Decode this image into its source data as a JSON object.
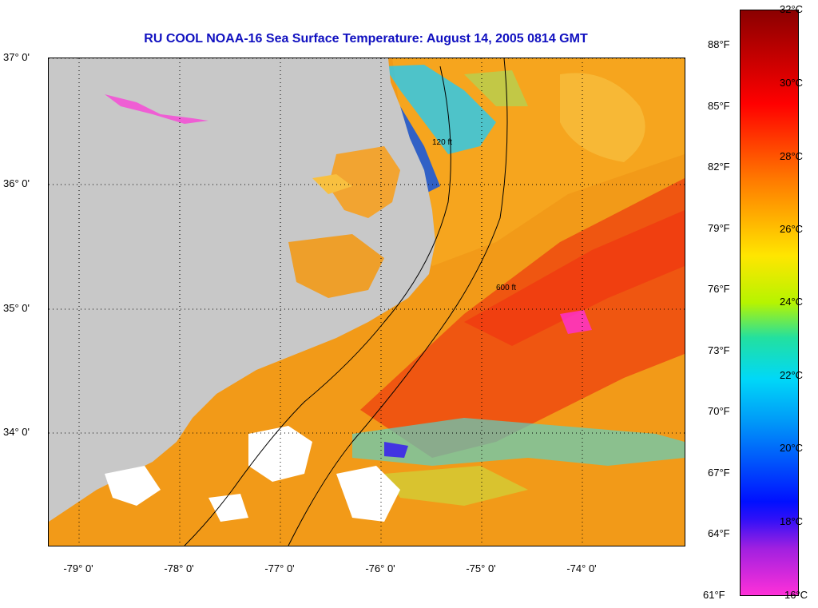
{
  "title": "RU COOL  NOAA-16  Sea Surface Temperature:  August 14, 2005 0814 GMT",
  "lat_labels": [
    "37° 0'",
    "36° 0'",
    "35° 0'",
    "34° 0'"
  ],
  "lon_labels": [
    "-79° 0'",
    "-78° 0'",
    "-77° 0'",
    "-76° 0'",
    "-75° 0'",
    "-74° 0'"
  ],
  "isobath_labels": [
    "120 ft",
    "600 ft"
  ],
  "colorbar": {
    "fahrenheit": [
      "88°F",
      "85°F",
      "82°F",
      "79°F",
      "76°F",
      "73°F",
      "70°F",
      "67°F",
      "64°F",
      "61°F"
    ],
    "celsius": [
      "32°C",
      "30°C",
      "28°C",
      "26°C",
      "24°C",
      "22°C",
      "20°C",
      "18°C",
      "16°C"
    ]
  },
  "colors": {
    "title": "#1010c0",
    "land": "#c8c8c8",
    "warm_water": "#f29a18",
    "gulf_stream": "#ee4a10",
    "cool_water": "#30c8e8",
    "cloud": "#ffffff"
  }
}
